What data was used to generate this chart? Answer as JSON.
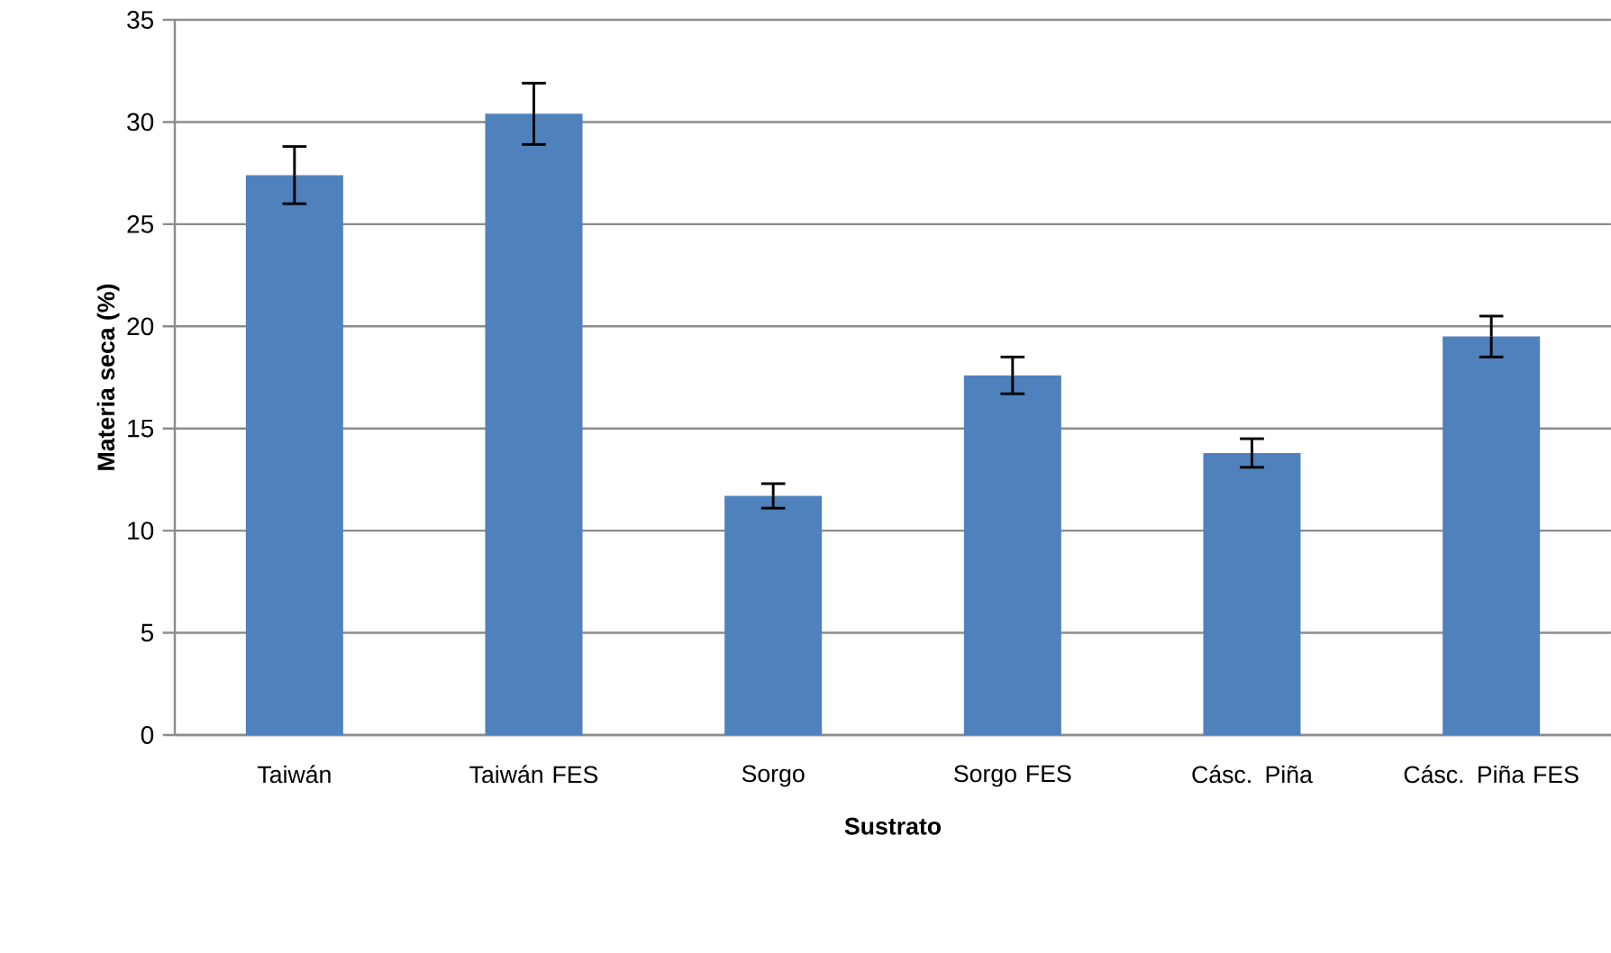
{
  "chart_data": {
    "type": "bar",
    "xlabel": "Sustrato",
    "ylabel": "Materia seca (%)",
    "categories": [
      "Taiwán",
      "Taiwán FES",
      "Sorgo",
      "Sorgo FES",
      "Cásc. Piña",
      "Cásc. Piña FES"
    ],
    "values": [
      27.4,
      30.4,
      11.7,
      17.6,
      13.8,
      19.5
    ],
    "errors": [
      1.4,
      1.5,
      0.6,
      0.9,
      0.7,
      1.0
    ],
    "color": "#4f81bd",
    "ylim": [
      0,
      35
    ],
    "yticks": [
      0,
      5,
      10,
      15,
      20,
      25,
      30,
      35
    ],
    "grid": "y"
  }
}
